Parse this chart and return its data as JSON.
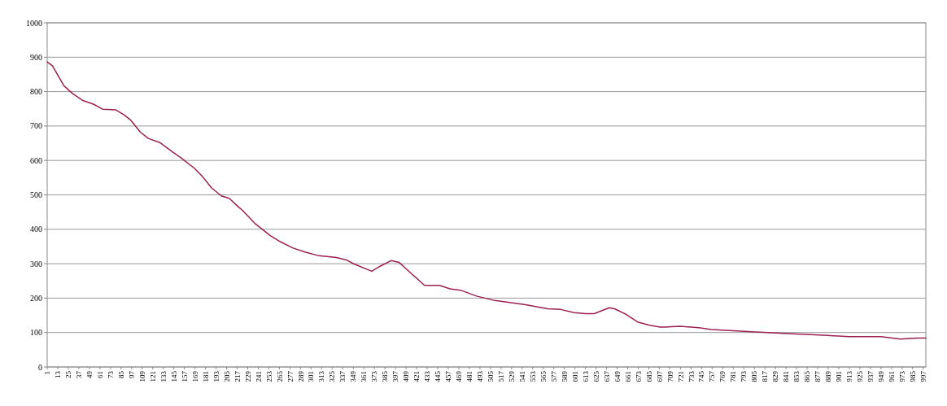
{
  "chart_data": {
    "type": "line",
    "x": [
      1,
      7,
      20,
      30,
      41,
      54,
      64,
      79,
      88,
      96,
      107,
      116,
      129,
      144,
      153,
      168,
      177,
      188,
      199,
      208,
      218,
      223,
      238,
      255,
      266,
      280,
      294,
      310,
      330,
      341,
      350,
      370,
      379,
      392,
      401,
      410,
      430,
      447,
      459,
      471,
      489,
      510,
      545,
      570,
      585,
      600,
      613,
      623,
      640,
      646,
      659,
      673,
      686,
      698,
      703,
      720,
      742,
      756,
      802,
      843,
      879,
      913,
      949,
      971,
      990,
      1000
    ],
    "series": [
      {
        "color": "#9b2050",
        "values": [
          886,
          875,
          817,
          794,
          775,
          763,
          749,
          747,
          733,
          717,
          682,
          664,
          652,
          624,
          608,
          578,
          555,
          520,
          497,
          490,
          466,
          455,
          415,
          381,
          364,
          346,
          334,
          323,
          318,
          311,
          299,
          278,
          292,
          309,
          304,
          283,
          237,
          237,
          227,
          223,
          206,
          193,
          181,
          169,
          167,
          158,
          155,
          155,
          172,
          169,
          153,
          130,
          121,
          116,
          116,
          118,
          114,
          109,
          102,
          97,
          93,
          88,
          88,
          81,
          84,
          84
        ]
      }
    ],
    "xlim": [
      1,
      1000
    ],
    "xticks": [
      1,
      13,
      25,
      37,
      49,
      61,
      73,
      85,
      97,
      109,
      121,
      133,
      145,
      157,
      169,
      181,
      193,
      205,
      217,
      229,
      241,
      253,
      265,
      277,
      289,
      301,
      313,
      325,
      337,
      349,
      361,
      373,
      385,
      397,
      409,
      421,
      433,
      445,
      457,
      469,
      481,
      493,
      505,
      517,
      529,
      541,
      553,
      565,
      577,
      589,
      601,
      613,
      625,
      637,
      649,
      661,
      673,
      685,
      697,
      709,
      721,
      733,
      745,
      757,
      769,
      781,
      793,
      805,
      817,
      829,
      841,
      853,
      865,
      877,
      889,
      901,
      913,
      925,
      937,
      949,
      961,
      973,
      985,
      997
    ],
    "ylim": [
      0,
      1000
    ],
    "yticks": [
      0,
      100,
      200,
      300,
      400,
      500,
      600,
      700,
      800,
      900,
      1000
    ],
    "grid": "y",
    "marker": "none",
    "line_style": "solid"
  }
}
